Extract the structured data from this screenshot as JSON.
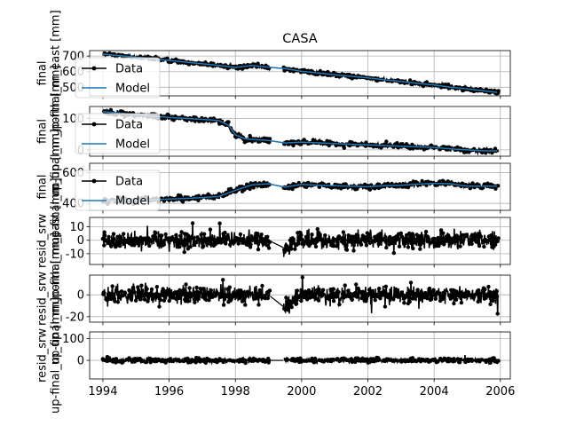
{
  "chart_data": [
    {
      "type": "line",
      "title": "CASA",
      "ylabel": "final\nup-final_m_east [mm]",
      "xlim": [
        1993.6,
        2006.3
      ],
      "ylim": [
        445,
        735
      ],
      "yticks": [
        500,
        600,
        700
      ],
      "grid": true,
      "legend": "upper-left",
      "series": [
        {
          "name": "Data",
          "color": "#000000",
          "marker": "dot",
          "x": [
            1994.0,
            1995.0,
            1996.0,
            1997.0,
            1997.5,
            1998.0,
            1998.5,
            1999.0,
            1999.5,
            2000.0,
            2000.5,
            2001.0,
            2001.5,
            2002.0,
            2002.5,
            2003.0,
            2003.5,
            2004.0,
            2004.5,
            2005.0,
            2005.5,
            2005.9
          ],
          "y": [
            712,
            693,
            672,
            650,
            640,
            627,
            640,
            628,
            620,
            602,
            592,
            580,
            570,
            560,
            548,
            537,
            525,
            515,
            500,
            490,
            477,
            467
          ]
        },
        {
          "name": "Model",
          "color": "#1f77b4",
          "x": [
            1994.0,
            1995.0,
            1996.0,
            1997.0,
            1997.5,
            1998.0,
            1998.5,
            1999.0,
            1999.5,
            2000.0,
            2000.5,
            2001.0,
            2001.5,
            2002.0,
            2002.5,
            2003.0,
            2003.5,
            2004.0,
            2004.5,
            2005.0,
            2005.5,
            2005.9
          ],
          "y": [
            712,
            693,
            672,
            650,
            640,
            627,
            640,
            628,
            620,
            602,
            592,
            580,
            570,
            560,
            548,
            537,
            525,
            515,
            500,
            490,
            477,
            467
          ]
        }
      ]
    },
    {
      "type": "line",
      "ylabel": "final\nup-final_m_north [mm]",
      "xlim": [
        1993.6,
        2006.3
      ],
      "ylim": [
        -20,
        138
      ],
      "yticks": [
        0,
        100
      ],
      "grid": true,
      "legend": "upper-left",
      "series": [
        {
          "name": "Data",
          "color": "#000000",
          "marker": "dot",
          "x": [
            1994.0,
            1995.0,
            1996.0,
            1997.0,
            1997.5,
            1997.8,
            1998.0,
            1998.3,
            1999.0,
            1999.5,
            2000.0,
            2001.0,
            2002.0,
            2003.0,
            2004.0,
            2004.5,
            2005.0,
            2005.5,
            2005.9
          ],
          "y": [
            122,
            112,
            103,
            97,
            93,
            78,
            48,
            35,
            30,
            22,
            25,
            20,
            16,
            12,
            8,
            3,
            0,
            -3,
            -3
          ]
        },
        {
          "name": "Model",
          "color": "#1f77b4",
          "x": [
            1994.0,
            1995.0,
            1996.0,
            1997.0,
            1997.5,
            1997.8,
            1998.0,
            1998.3,
            1999.0,
            1999.5,
            2000.0,
            2001.0,
            2002.0,
            2003.0,
            2004.0,
            2004.5,
            2005.0,
            2005.5,
            2005.9
          ],
          "y": [
            122,
            112,
            103,
            97,
            93,
            78,
            48,
            35,
            30,
            22,
            25,
            20,
            16,
            12,
            8,
            3,
            0,
            -3,
            -3
          ]
        }
      ]
    },
    {
      "type": "line",
      "ylabel": "final\nup-final_m_up [mm]",
      "xlim": [
        1993.6,
        2006.3
      ],
      "ylim": [
        355,
        660
      ],
      "yticks": [
        400,
        600
      ],
      "grid": true,
      "legend": "upper-left",
      "series": [
        {
          "name": "Data",
          "color": "#000000",
          "marker": "dot",
          "x": [
            1994.0,
            1995.0,
            1996.0,
            1996.5,
            1997.0,
            1997.5,
            1998.0,
            1998.5,
            1999.0,
            1999.5,
            2000.0,
            2000.5,
            2001.0,
            2002.0,
            2002.5,
            2003.0,
            2003.5,
            2004.0,
            2004.5,
            2005.0,
            2005.9
          ],
          "y": [
            415,
            420,
            428,
            432,
            438,
            445,
            485,
            520,
            527,
            505,
            523,
            518,
            515,
            508,
            515,
            518,
            525,
            530,
            527,
            512,
            512
          ]
        },
        {
          "name": "Model",
          "color": "#1f77b4",
          "x": [
            1994.0,
            1995.0,
            1996.0,
            1996.5,
            1997.0,
            1997.5,
            1998.0,
            1998.5,
            1999.0,
            1999.5,
            2000.0,
            2000.5,
            2001.0,
            2002.0,
            2002.5,
            2003.0,
            2003.5,
            2004.0,
            2004.5,
            2005.0,
            2005.9
          ],
          "y": [
            415,
            420,
            428,
            432,
            438,
            445,
            485,
            520,
            527,
            505,
            523,
            518,
            515,
            508,
            515,
            518,
            525,
            530,
            527,
            512,
            512
          ]
        }
      ]
    },
    {
      "type": "line",
      "ylabel": "resid_srw\nup-final_m_east [mm]",
      "xlim": [
        1993.6,
        2006.3
      ],
      "ylim": [
        -18,
        17
      ],
      "yticks": [
        -10,
        0,
        10
      ],
      "grid": true,
      "series": [
        {
          "name": "",
          "color": "#000000",
          "marker": "dot",
          "x": [
            1994.0,
            1995.0,
            1996.0,
            1997.0,
            1998.0,
            1998.5,
            1999.0,
            1999.5,
            2000.0,
            2001.0,
            2002.0,
            2003.0,
            2004.0,
            2005.0,
            2005.9
          ],
          "y": [
            0,
            0,
            0,
            0,
            0,
            0,
            0,
            -6,
            0,
            0,
            0,
            0,
            0,
            0,
            0
          ]
        }
      ]
    },
    {
      "type": "line",
      "ylabel": "resid_srw\nup-final_m_north [mm]",
      "xlim": [
        1993.6,
        2006.3
      ],
      "ylim": [
        -25,
        18
      ],
      "yticks": [
        -20,
        0
      ],
      "grid": true,
      "series": [
        {
          "name": "",
          "color": "#000000",
          "marker": "dot",
          "x": [
            1994.0,
            1995.0,
            1996.0,
            1997.0,
            1998.0,
            1998.5,
            1999.0,
            1999.5,
            2000.0,
            2001.0,
            2002.0,
            2003.0,
            2004.0,
            2005.0,
            2005.9
          ],
          "y": [
            0,
            0,
            0,
            0,
            0,
            0,
            0,
            -12,
            0,
            0,
            0,
            0,
            0,
            0,
            0
          ]
        }
      ]
    },
    {
      "type": "line",
      "ylabel": "resid_srw\nup-final_m_up [mm]",
      "xlim": [
        1993.6,
        2006.3
      ],
      "ylim": [
        -85,
        130
      ],
      "yticks": [
        0,
        100
      ],
      "grid": true,
      "xticks": [
        1994,
        1996,
        1998,
        2000,
        2002,
        2004,
        2006
      ],
      "xticklabels": [
        "1994",
        "1996",
        "1998",
        "2000",
        "2002",
        "2004",
        "2006"
      ],
      "series": [
        {
          "name": "",
          "color": "#000000",
          "marker": "dot",
          "x": [
            1994.0,
            1995.0,
            1996.0,
            1997.0,
            1998.0,
            1998.5,
            1999.0,
            1999.5,
            2000.0,
            2001.0,
            2002.0,
            2003.0,
            2004.0,
            2005.0,
            2005.9
          ],
          "y": [
            0,
            0,
            0,
            0,
            0,
            0,
            0,
            0,
            0,
            0,
            0,
            0,
            0,
            0,
            0
          ]
        }
      ]
    }
  ]
}
